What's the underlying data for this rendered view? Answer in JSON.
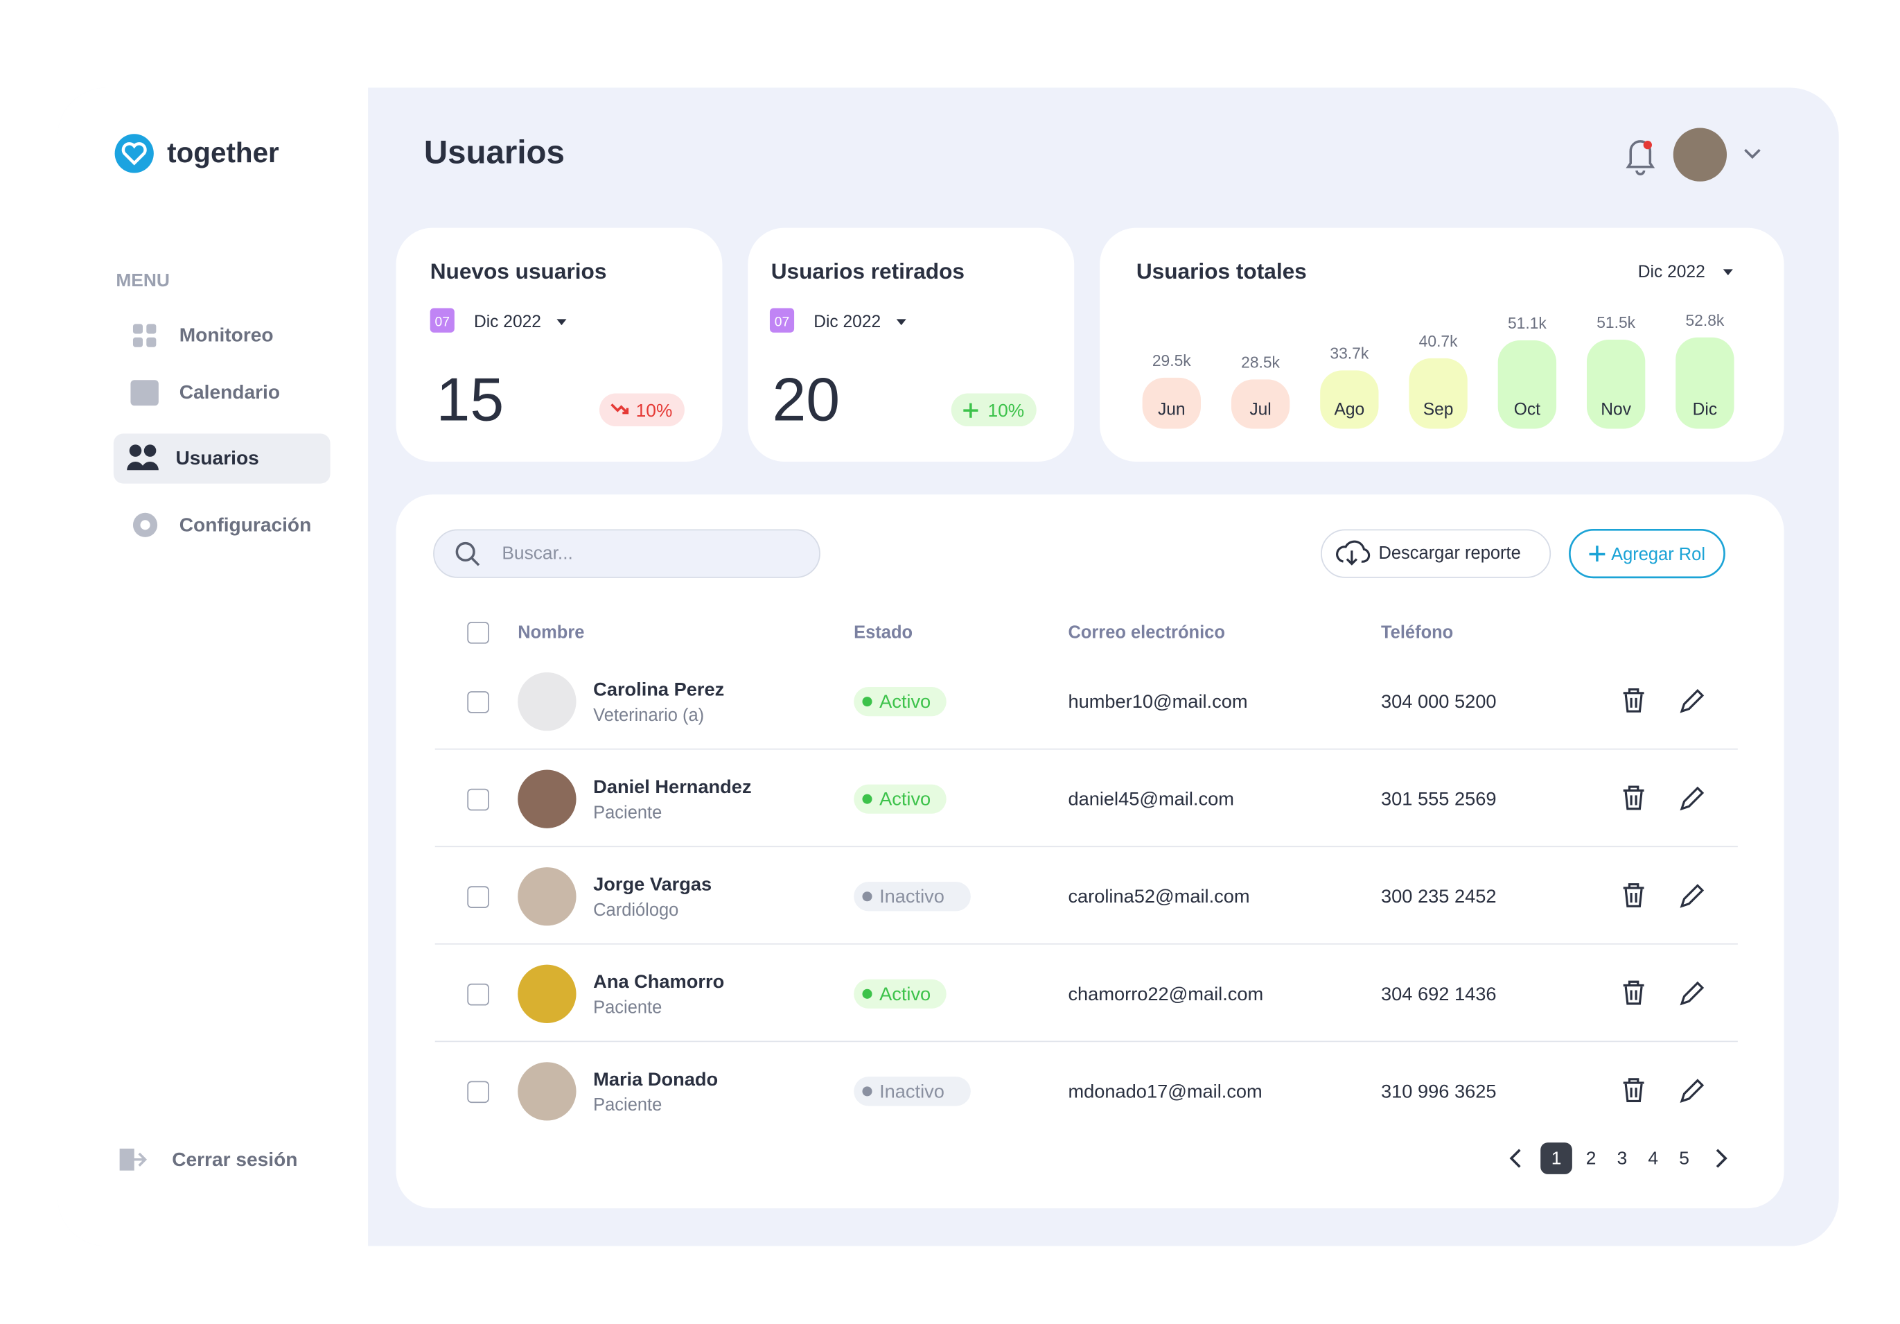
{
  "brand": "together",
  "menu": {
    "heading": "MENU",
    "items": [
      "Monitoreo",
      "Calendario",
      "Usuarios",
      "Configuración"
    ],
    "active": 2,
    "logout": "Cerrar sesión"
  },
  "page_title": "Usuarios",
  "cards": [
    {
      "title": "Nuevos usuarios",
      "date_badge": "07",
      "period": "Dic 2022",
      "value": "15",
      "change": "10%",
      "trend": "down"
    },
    {
      "title": "Usuarios retirados",
      "date_badge": "07",
      "period": "Dic 2022",
      "value": "20",
      "change": "10%",
      "trend": "up"
    }
  ],
  "chart_data": {
    "type": "bar",
    "title": "Usuarios totales",
    "period": "Dic 2022",
    "categories": [
      "Jun",
      "Jul",
      "Ago",
      "Sep",
      "Oct",
      "Nov",
      "Dic"
    ],
    "values": [
      29500,
      28500,
      33700,
      40700,
      51100,
      51500,
      52800
    ],
    "value_labels": [
      "29.5k",
      "28.5k",
      "33.7k",
      "40.7k",
      "51.1k",
      "51.5k",
      "52.8k"
    ],
    "colors": [
      "#fde3d9",
      "#fde3d9",
      "#f3fbc0",
      "#f3fbc0",
      "#d6fbc8",
      "#d6fbc8",
      "#d6fbc8"
    ]
  },
  "toolbar": {
    "search_placeholder": "Buscar...",
    "download": "Descargar reporte",
    "add": "Agregar Rol"
  },
  "table": {
    "headers": [
      "Nombre",
      "Estado",
      "Correo electrónico",
      "Teléfono"
    ],
    "rows": [
      {
        "name": "Carolina Perez",
        "role": "Veterinario (a)",
        "status": "Activo",
        "email": "humber10@mail.com",
        "phone": "304 000 5200"
      },
      {
        "name": "Daniel Hernandez",
        "role": "Paciente",
        "status": "Activo",
        "email": "daniel45@mail.com",
        "phone": "301 555 2569"
      },
      {
        "name": "Jorge Vargas",
        "role": "Cardiólogo",
        "status": "Inactivo",
        "email": "carolina52@mail.com",
        "phone": "300 235 2452"
      },
      {
        "name": "Ana Chamorro",
        "role": "Paciente",
        "status": "Activo",
        "email": "chamorro22@mail.com",
        "phone": "304 692 1436"
      },
      {
        "name": "Maria Donado",
        "role": "Paciente",
        "status": "Inactivo",
        "email": "mdonado17@mail.com",
        "phone": "310 996 3625"
      }
    ]
  },
  "pagination": {
    "pages": [
      "1",
      "2",
      "3",
      "4",
      "5"
    ],
    "current": 0
  }
}
